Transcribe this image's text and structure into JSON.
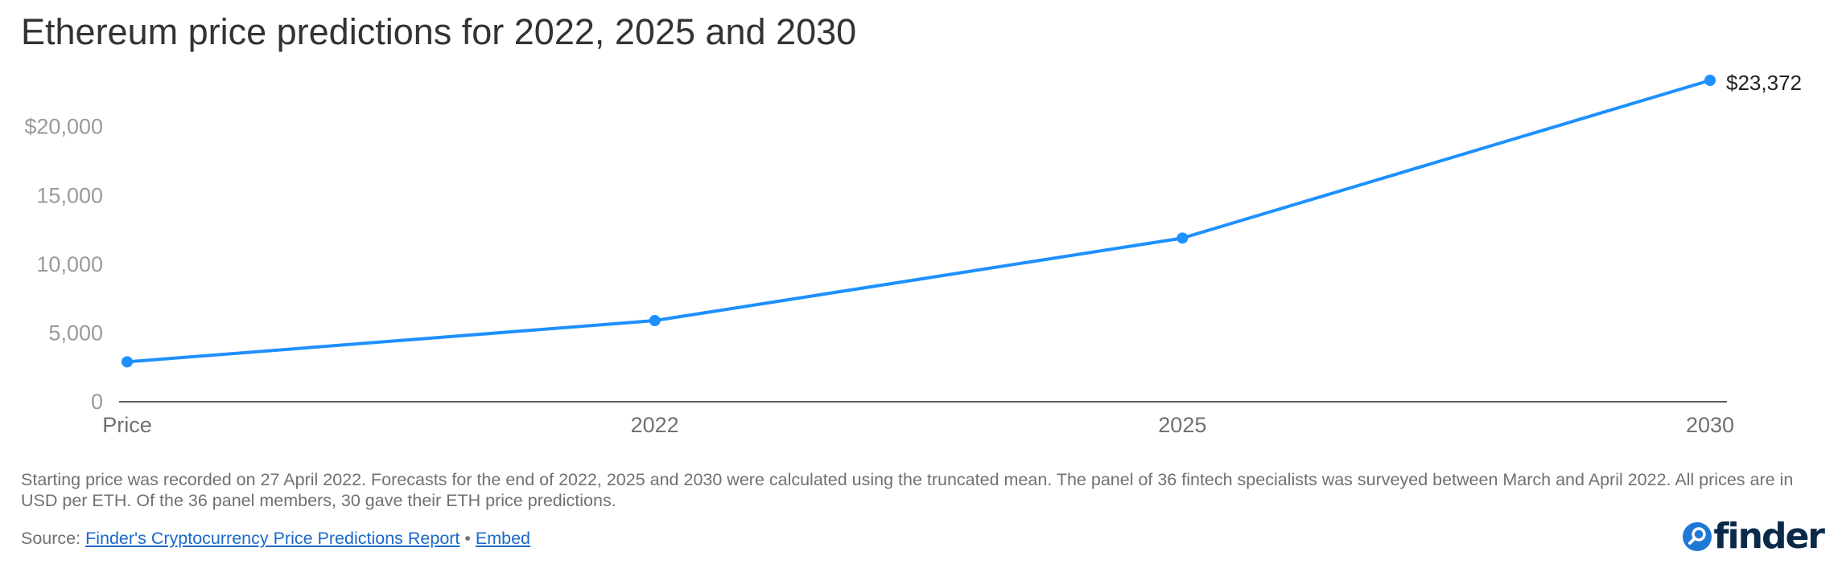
{
  "title": "Ethereum price predictions for 2022, 2025 and 2030",
  "colors": {
    "line": "#1e90ff",
    "axis": "#222222",
    "tick_text": "#9a9a9a",
    "link": "#1b6ac9"
  },
  "chart_data": {
    "type": "line",
    "categories": [
      "Price",
      "2022",
      "2025",
      "2030"
    ],
    "series": [
      {
        "values": [
          2900,
          5900,
          11900,
          23372
        ]
      }
    ],
    "ylim": [
      0,
      23372
    ],
    "yticks": [
      0,
      5000,
      10000,
      15000,
      20000
    ],
    "ytick_labels": [
      "0",
      "5,000",
      "10,000",
      "15,000",
      "$20,000"
    ],
    "data_labels": [
      {
        "index": 3,
        "text": "$23,372"
      }
    ],
    "grid": false,
    "legend": "none"
  },
  "footnote": "Starting price was recorded on 27 April 2022. Forecasts for the end of 2022, 2025 and 2030 were calculated using the truncated mean. The panel of 36 fintech specialists was surveyed between March and April 2022. All prices are in USD per ETH. Of the 36 panel members, 30 gave their ETH price predictions.",
  "source": {
    "prefix": "Source: ",
    "link_text": "Finder's Cryptocurrency Price Predictions Report",
    "separator": " • ",
    "embed_text": "Embed"
  },
  "logo": {
    "text": "finder",
    "icon": "magnifier-icon"
  }
}
